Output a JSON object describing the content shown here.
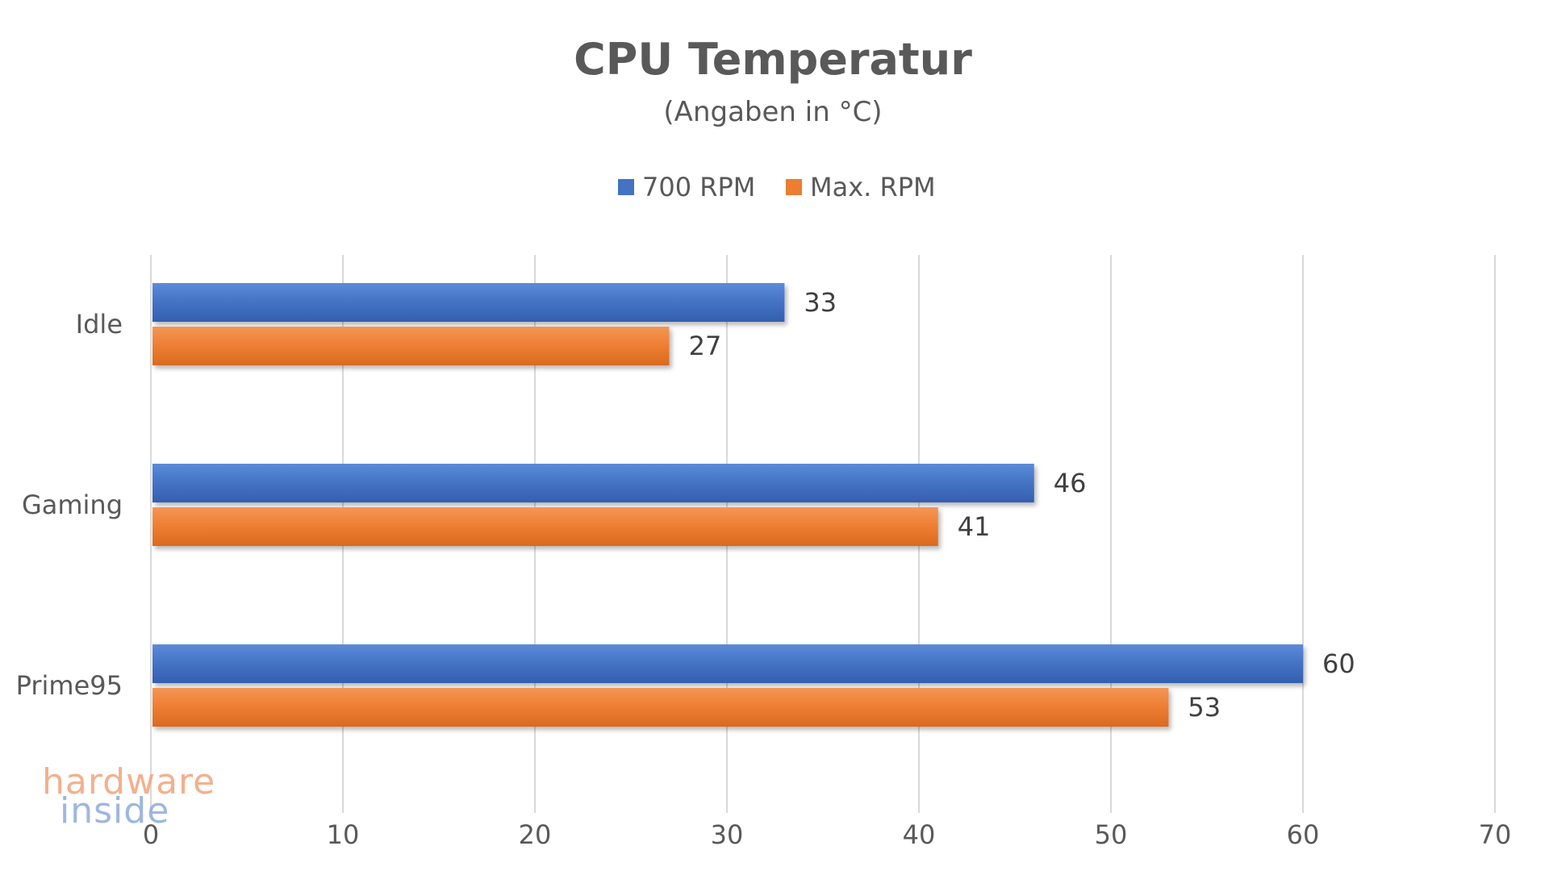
{
  "chart_data": {
    "type": "bar",
    "orientation": "horizontal",
    "title": "CPU Temperatur",
    "subtitle": "(Angaben in °C)",
    "categories": [
      "Idle",
      "Gaming",
      "Prime95"
    ],
    "series": [
      {
        "name": "700 RPM",
        "color": "#4472c4",
        "values": [
          33,
          46,
          60
        ]
      },
      {
        "name": "Max. RPM",
        "color": "#ed7d31",
        "values": [
          27,
          41,
          53
        ]
      }
    ],
    "xlim": [
      0,
      70
    ],
    "xticks": [
      0,
      10,
      20,
      30,
      40,
      50,
      60,
      70
    ],
    "grid": true,
    "legend_position": "top",
    "xlabel": "",
    "ylabel": ""
  },
  "watermark": {
    "line1": "hardware",
    "line2": "inside"
  }
}
